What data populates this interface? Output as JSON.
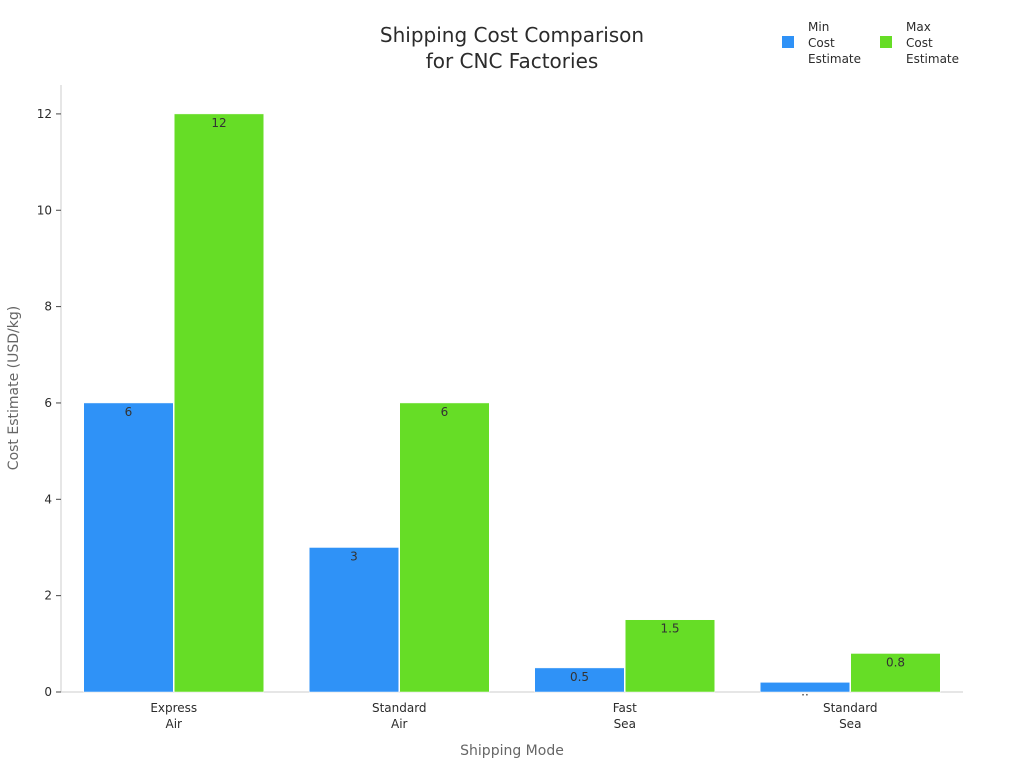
{
  "chart_data": {
    "type": "bar",
    "title": [
      "Shipping Cost Comparison",
      "for CNC Factories"
    ],
    "xlabel": "Shipping Mode",
    "ylabel": "Cost Estimate (USD/kg)",
    "categories": [
      [
        "Express",
        "Air"
      ],
      [
        "Standard",
        "Air"
      ],
      [
        "Fast",
        "Sea"
      ],
      [
        "Standard",
        "Sea"
      ]
    ],
    "series": [
      {
        "name": [
          "Min",
          "Cost",
          "Estimate"
        ],
        "values": [
          6,
          3,
          0.5,
          0.2
        ],
        "labels": [
          "6",
          "3",
          "0.5",
          ".."
        ],
        "color": "#2f92f7"
      },
      {
        "name": [
          "Max",
          "Cost",
          "Estimate"
        ],
        "values": [
          12,
          6,
          1.5,
          0.8
        ],
        "labels": [
          "12",
          "6",
          "1.5",
          "0.8"
        ],
        "color": "#66dd26"
      }
    ],
    "ylim": [
      0,
      12.6
    ],
    "yticks": [
      0,
      2,
      4,
      6,
      8,
      10,
      12
    ],
    "grid": false,
    "legend": "top-right"
  }
}
